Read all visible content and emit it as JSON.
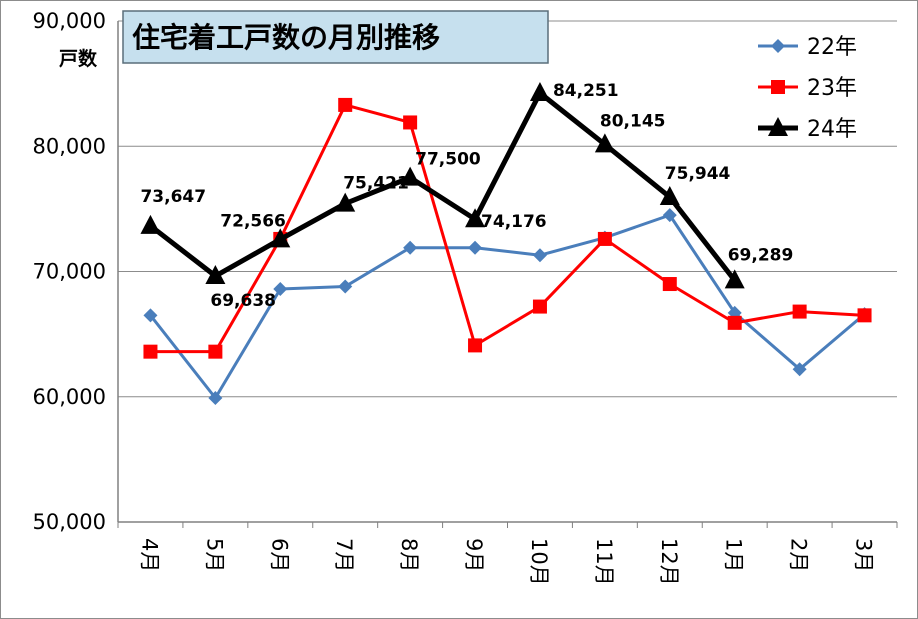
{
  "chart_data": {
    "type": "line",
    "title": "住宅着工戸数の月別推移",
    "ylabel": "戸数",
    "xlabel": "",
    "ylim": [
      50000,
      90000
    ],
    "y_ticks": [
      50000,
      60000,
      70000,
      80000,
      90000
    ],
    "y_tick_labels": [
      "50,000",
      "60,000",
      "70,000",
      "80,000",
      "90,000"
    ],
    "grid": true,
    "legend_position": "top-right",
    "categories": [
      "4月",
      "5月",
      "6月",
      "7月",
      "8月",
      "9月",
      "10月",
      "11月",
      "12月",
      "1月",
      "2月",
      "3月"
    ],
    "series": [
      {
        "name": "22年",
        "color": "#4a7ebb",
        "marker": "diamond",
        "values": [
          66500,
          59900,
          68600,
          68800,
          71900,
          71900,
          71300,
          72700,
          74500,
          66700,
          62200,
          66600
        ]
      },
      {
        "name": "23年",
        "color": "#ff0000",
        "marker": "square",
        "values": [
          63600,
          63600,
          72600,
          83300,
          81900,
          64100,
          67200,
          72600,
          69000,
          65900,
          66800,
          66500
        ]
      },
      {
        "name": "24年",
        "color": "#000000",
        "marker": "triangle",
        "values": [
          73647,
          69638,
          72566,
          75421,
          77500,
          74176,
          84251,
          80145,
          75944,
          69289,
          null,
          null
        ],
        "data_labels": [
          "73,647",
          "69,638",
          "72,566",
          "75,421",
          "77,500",
          "74,176",
          "84,251",
          "80,145",
          "75,944",
          "69,289",
          null,
          null
        ]
      }
    ]
  }
}
